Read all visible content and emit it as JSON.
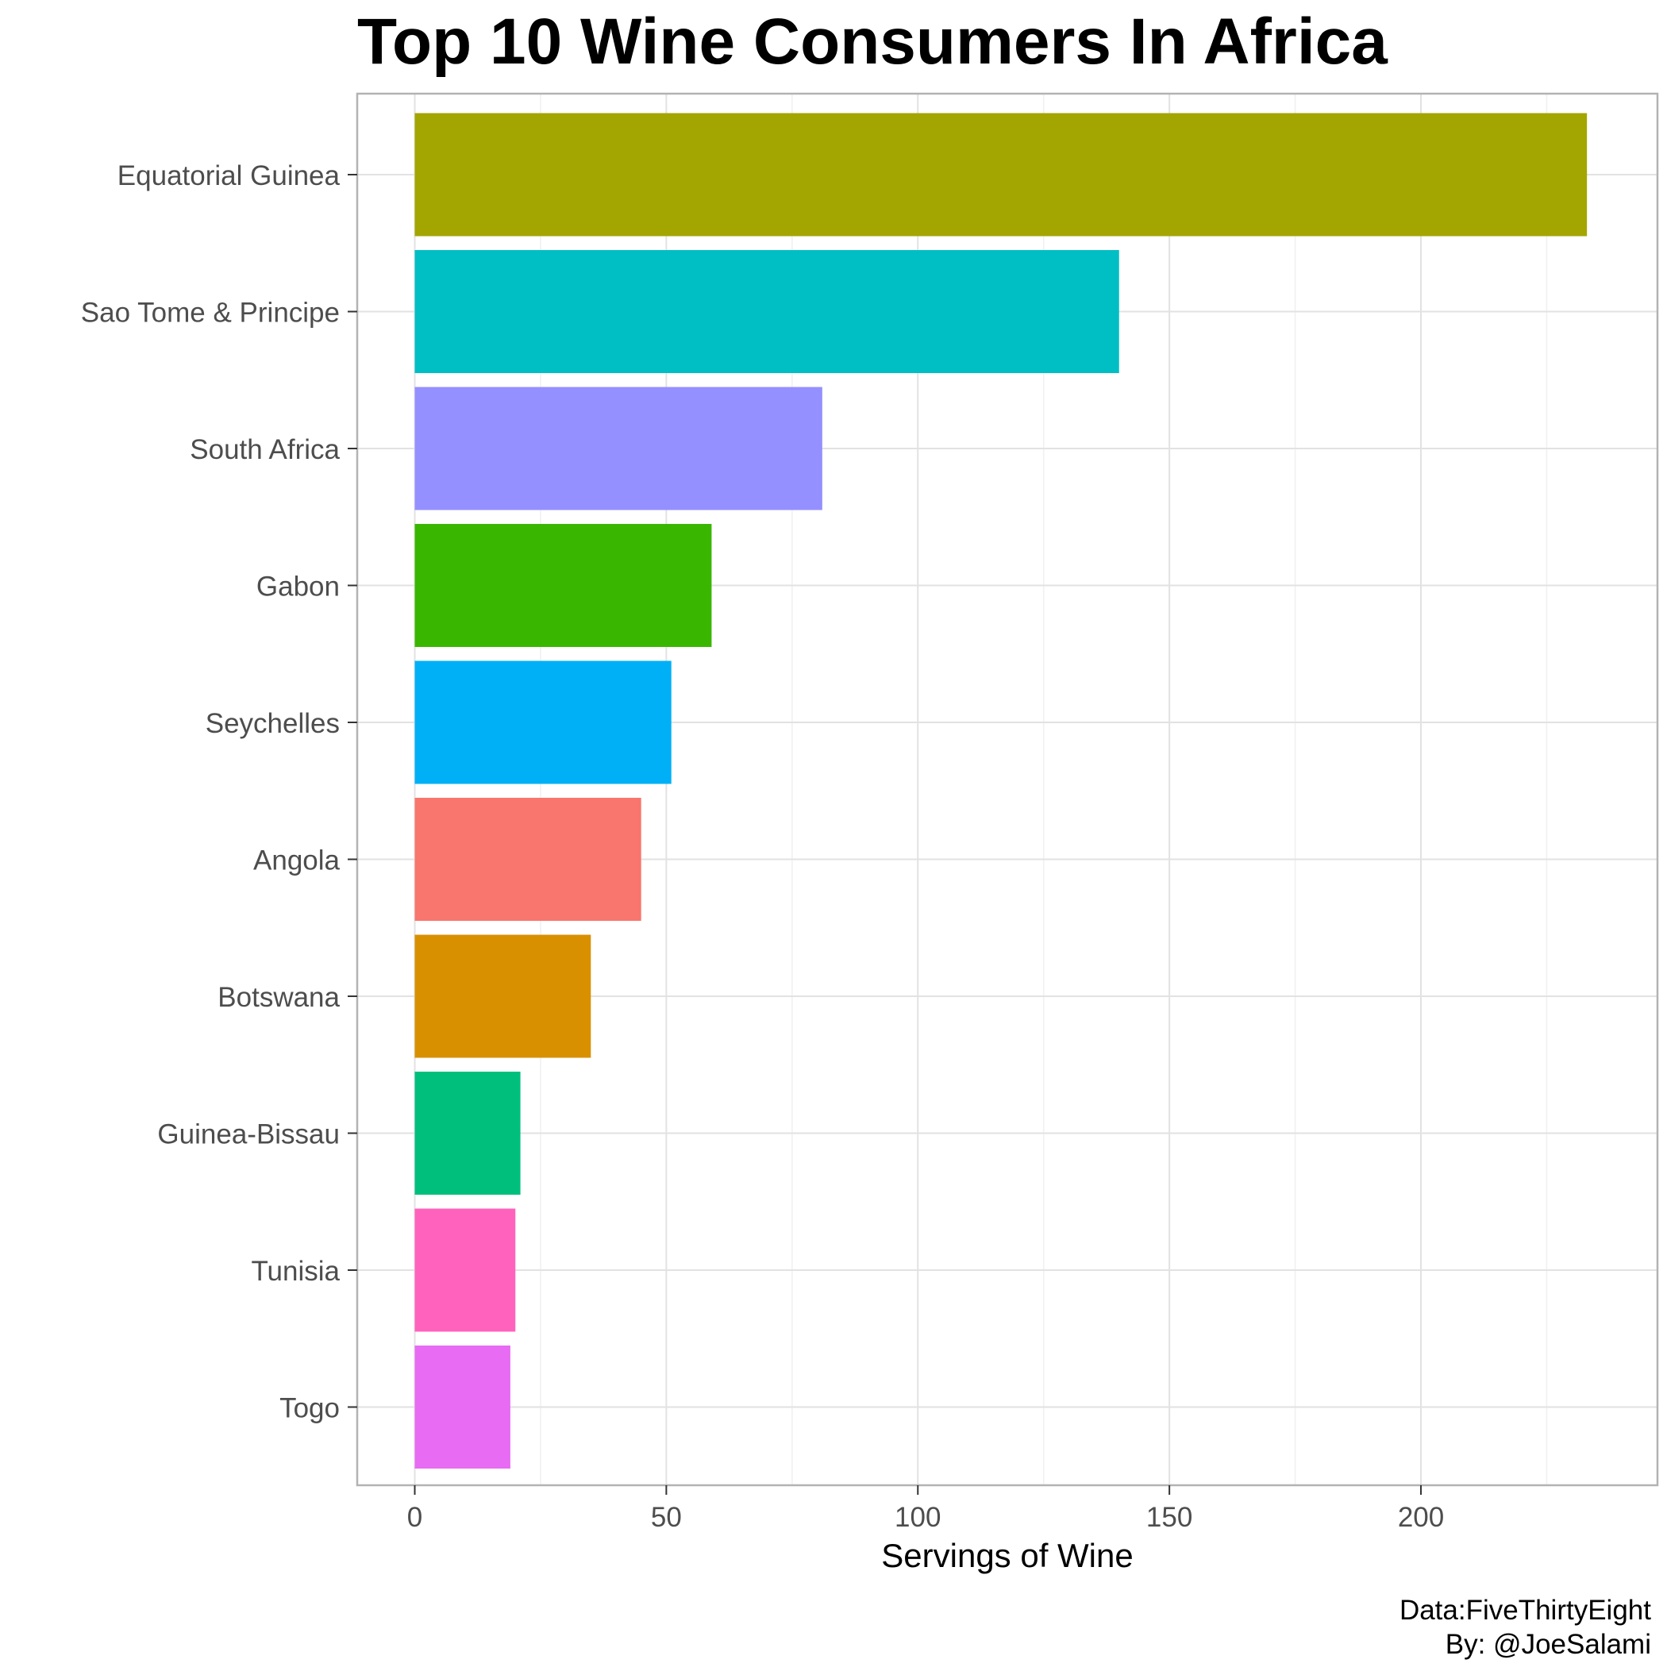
{
  "chart_data": {
    "type": "bar",
    "orientation": "horizontal",
    "title": "Top 10 Wine Consumers In Africa",
    "xlabel": "Servings of Wine",
    "ylabel": "",
    "xlim": [
      0,
      240
    ],
    "x_ticks": [
      0,
      50,
      100,
      150,
      200
    ],
    "grid": true,
    "legend": "none",
    "categories": [
      "Equatorial Guinea",
      "Sao Tome & Principe",
      "South Africa",
      "Gabon",
      "Seychelles",
      "Angola",
      "Botswana",
      "Guinea-Bissau",
      "Tunisia",
      "Togo"
    ],
    "values": [
      233,
      140,
      81,
      59,
      51,
      45,
      35,
      21,
      20,
      19
    ],
    "colors": [
      "#A3A500",
      "#00BFC4",
      "#9590FF",
      "#39B600",
      "#00B0F6",
      "#F8766D",
      "#D89000",
      "#00BF7D",
      "#FF62BC",
      "#E76BF3"
    ],
    "caption": [
      "Data:FiveThirtyEight",
      "By: @JoeSalami"
    ]
  }
}
